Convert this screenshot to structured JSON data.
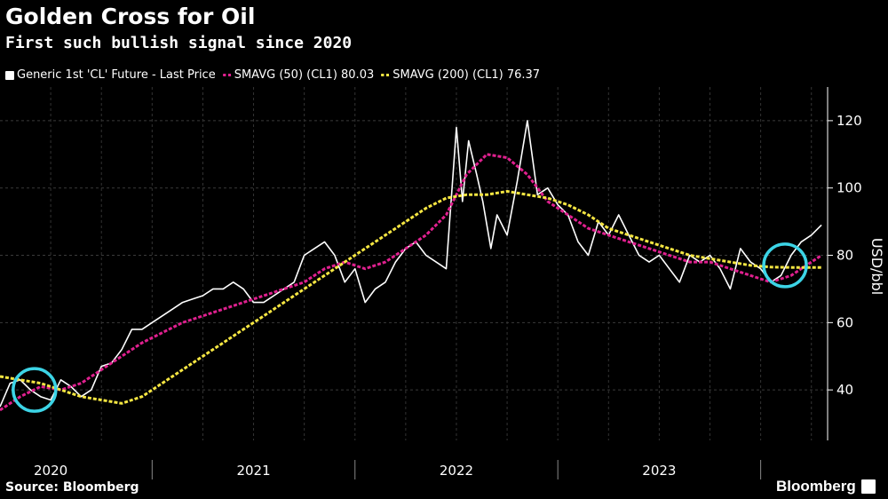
{
  "title": "Golden Cross for Oil",
  "subtitle": "First such bullish signal since 2020",
  "source": "Source: Bloomberg",
  "brand": "Bloomberg",
  "legend": [
    {
      "label": "Generic 1st 'CL' Future - Last Price",
      "color": "#ffffff",
      "style": "solid"
    },
    {
      "label": "SMAVG (50) (CL1) 80.03",
      "color": "#e0208f",
      "style": "dashed"
    },
    {
      "label": "SMAVG (200) (CL1) 76.37",
      "color": "#f5e642",
      "style": "dashed"
    }
  ],
  "chart_data": {
    "type": "line",
    "ylabel": "USD/bbl",
    "ylim": [
      25,
      130
    ],
    "yticks": [
      40,
      60,
      80,
      100,
      120
    ],
    "xlim": [
      2019.75,
      2023.83
    ],
    "year_labels": [
      {
        "label": "2020",
        "x": 2020.0
      },
      {
        "label": "2021",
        "x": 2021.0
      },
      {
        "label": "2022",
        "x": 2022.0
      },
      {
        "label": "2023",
        "x": 2023.0
      }
    ],
    "grid": true,
    "series": [
      {
        "name": "Generic 1st 'CL' Future - Last Price",
        "color": "#ffffff",
        "style": "solid",
        "x": [
          2019.75,
          2019.8,
          2019.85,
          2019.9,
          2019.95,
          2020.0,
          2020.05,
          2020.1,
          2020.15,
          2020.2,
          2020.25,
          2020.3,
          2020.35,
          2020.4,
          2020.45,
          2020.5,
          2020.55,
          2020.6,
          2020.65,
          2020.7,
          2020.75,
          2020.8,
          2020.85,
          2020.9,
          2020.95,
          2021.0,
          2021.05,
          2021.1,
          2021.15,
          2021.2,
          2021.25,
          2021.3,
          2021.35,
          2021.4,
          2021.45,
          2021.5,
          2021.55,
          2021.6,
          2021.65,
          2021.7,
          2021.75,
          2021.8,
          2021.85,
          2021.9,
          2021.95,
          2022.0,
          2022.03,
          2022.06,
          2022.1,
          2022.13,
          2022.17,
          2022.2,
          2022.25,
          2022.3,
          2022.35,
          2022.4,
          2022.45,
          2022.5,
          2022.55,
          2022.6,
          2022.65,
          2022.7,
          2022.75,
          2022.8,
          2022.85,
          2022.9,
          2022.95,
          2023.0,
          2023.05,
          2023.1,
          2023.15,
          2023.2,
          2023.25,
          2023.3,
          2023.35,
          2023.4,
          2023.45,
          2023.5,
          2023.55,
          2023.6,
          2023.65,
          2023.7,
          2023.75,
          2023.8
        ],
        "y": [
          35,
          42,
          43,
          40,
          38,
          37,
          43,
          41,
          38,
          40,
          47,
          48,
          52,
          58,
          58,
          60,
          62,
          64,
          66,
          67,
          68,
          70,
          70,
          72,
          70,
          66,
          66,
          68,
          70,
          72,
          80,
          82,
          84,
          80,
          72,
          76,
          66,
          70,
          72,
          78,
          82,
          84,
          80,
          78,
          76,
          118,
          96,
          114,
          104,
          96,
          82,
          92,
          86,
          102,
          120,
          98,
          100,
          95,
          92,
          84,
          80,
          90,
          86,
          92,
          86,
          80,
          78,
          80,
          76,
          72,
          80,
          78,
          80,
          76,
          70,
          82,
          78,
          76,
          72,
          74,
          80,
          84,
          86,
          89
        ],
        "note": "approximate price path"
      },
      {
        "name": "SMAVG (50) (CL1) 80.03",
        "color": "#e0208f",
        "style": "dashed",
        "x": [
          2019.75,
          2019.85,
          2019.95,
          2020.05,
          2020.15,
          2020.25,
          2020.35,
          2020.45,
          2020.55,
          2020.65,
          2020.75,
          2020.85,
          2020.95,
          2021.05,
          2021.15,
          2021.25,
          2021.35,
          2021.45,
          2021.55,
          2021.65,
          2021.75,
          2021.85,
          2021.95,
          2022.05,
          2022.15,
          2022.25,
          2022.35,
          2022.45,
          2022.55,
          2022.65,
          2022.75,
          2022.85,
          2022.95,
          2023.05,
          2023.15,
          2023.25,
          2023.35,
          2023.45,
          2023.55,
          2023.65,
          2023.75,
          2023.8
        ],
        "y": [
          34,
          38,
          41,
          40,
          42,
          46,
          50,
          54,
          57,
          60,
          62,
          64,
          66,
          68,
          70,
          72,
          76,
          78,
          76,
          78,
          82,
          86,
          92,
          104,
          110,
          109,
          104,
          96,
          92,
          88,
          86,
          84,
          82,
          80,
          78,
          78,
          76,
          74,
          72,
          74,
          78,
          80
        ]
      },
      {
        "name": "SMAVG (200) (CL1) 76.37",
        "color": "#f5e642",
        "style": "dashed",
        "x": [
          2019.75,
          2019.85,
          2019.95,
          2020.05,
          2020.15,
          2020.25,
          2020.35,
          2020.45,
          2020.55,
          2020.65,
          2020.75,
          2020.85,
          2020.95,
          2021.05,
          2021.15,
          2021.25,
          2021.35,
          2021.45,
          2021.55,
          2021.65,
          2021.75,
          2021.85,
          2021.95,
          2022.05,
          2022.15,
          2022.25,
          2022.35,
          2022.45,
          2022.55,
          2022.65,
          2022.75,
          2022.85,
          2022.95,
          2023.05,
          2023.15,
          2023.25,
          2023.35,
          2023.45,
          2023.55,
          2023.65,
          2023.75,
          2023.8
        ],
        "y": [
          44,
          43,
          42,
          40,
          38,
          37,
          36,
          38,
          42,
          46,
          50,
          54,
          58,
          62,
          66,
          70,
          74,
          78,
          82,
          86,
          90,
          94,
          97,
          98,
          98,
          99,
          98,
          97,
          95,
          92,
          88,
          86,
          84,
          82,
          80,
          79,
          78,
          77,
          76.5,
          76.4,
          76.4,
          76.37
        ]
      }
    ],
    "highlight_circles": [
      {
        "x": 2019.92,
        "y": 40,
        "color": "#3cd4e6"
      },
      {
        "x": 2023.62,
        "y": 77,
        "color": "#3cd4e6"
      }
    ]
  }
}
